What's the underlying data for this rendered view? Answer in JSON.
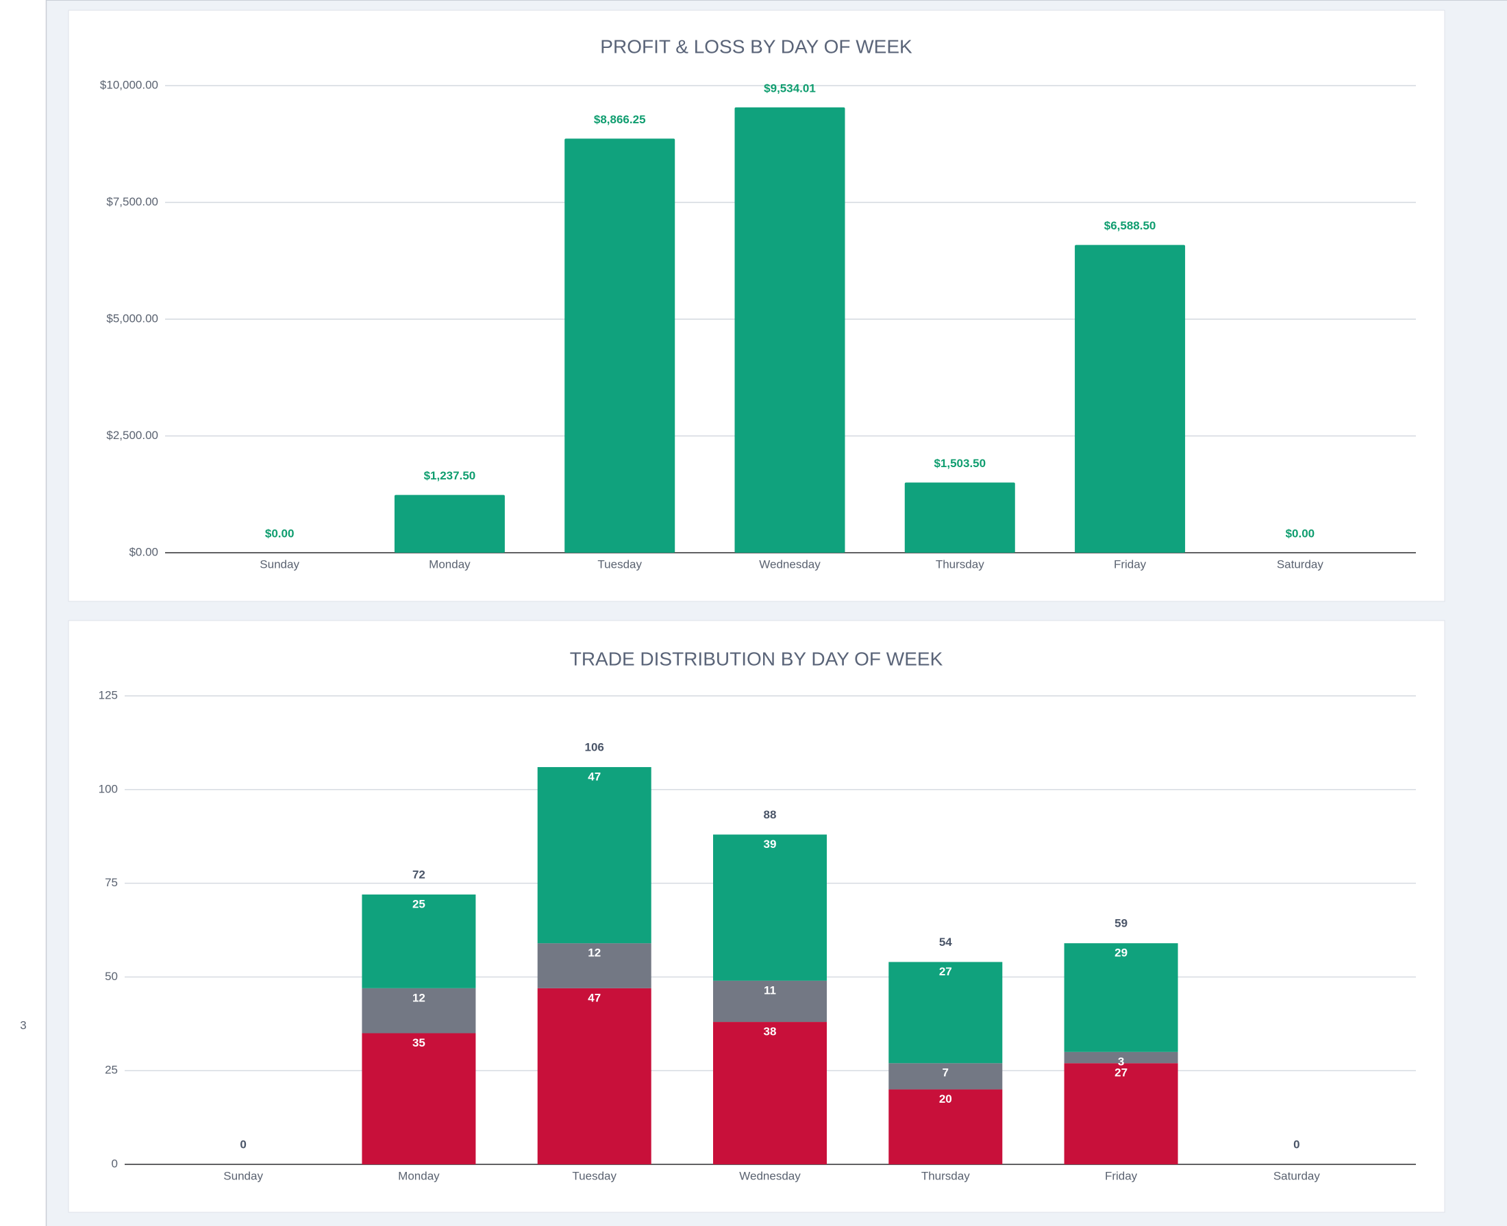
{
  "sidebar_label": "3",
  "chart_data": [
    {
      "type": "bar",
      "title": "PROFIT & LOSS BY DAY OF WEEK",
      "categories": [
        "Sunday",
        "Monday",
        "Tuesday",
        "Wednesday",
        "Thursday",
        "Friday",
        "Saturday"
      ],
      "values": [
        0,
        1237.5,
        8866.25,
        9534.01,
        1503.5,
        6588.5,
        0
      ],
      "value_labels": [
        "$0.00",
        "$1,237.50",
        "$8,866.25",
        "$9,534.01",
        "$1,503.50",
        "$6,588.50",
        "$0.00"
      ],
      "color": "#10a27d",
      "label_color": "#0f9d6f",
      "ylim": [
        0,
        10000
      ],
      "yticks": [
        {
          "value": 0,
          "label": "$0.00"
        },
        {
          "value": 2500,
          "label": "$2,500.00"
        },
        {
          "value": 5000,
          "label": "$5,000.00"
        },
        {
          "value": 7500,
          "label": "$7,500.00"
        },
        {
          "value": 10000,
          "label": "$10,000.00"
        }
      ],
      "grid": true
    },
    {
      "type": "stacked_bar",
      "title": "TRADE DISTRIBUTION BY DAY OF WEEK",
      "categories": [
        "Sunday",
        "Monday",
        "Tuesday",
        "Wednesday",
        "Thursday",
        "Friday",
        "Saturday"
      ],
      "series": [
        {
          "color": "#c8103a",
          "values": [
            0,
            35,
            47,
            38,
            20,
            27,
            0
          ]
        },
        {
          "color": "#737884",
          "values": [
            0,
            12,
            12,
            11,
            7,
            3,
            0
          ]
        },
        {
          "color": "#10a27d",
          "values": [
            0,
            25,
            47,
            39,
            27,
            29,
            0
          ]
        }
      ],
      "totals": [
        0,
        72,
        106,
        88,
        54,
        59,
        0
      ],
      "total_color": "#4a5568",
      "ylim": [
        0,
        125
      ],
      "yticks": [
        0,
        25,
        50,
        75,
        100,
        125
      ],
      "grid": true
    }
  ]
}
